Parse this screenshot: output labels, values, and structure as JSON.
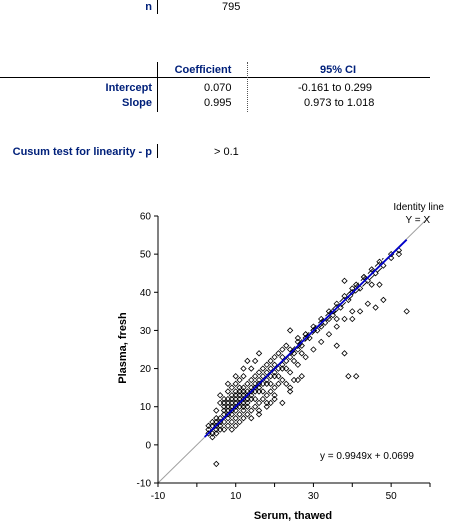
{
  "stats": {
    "n_label": "n",
    "n_value": "795",
    "col_coefficient": "Coefficient",
    "col_ci": "95% CI",
    "intercept_label": "Intercept",
    "intercept_value": "0.070",
    "intercept_ci": "-0.161  to 0.299",
    "slope_label": "Slope",
    "slope_value": "0.995",
    "slope_ci": "0.973  to 1.018",
    "cusum_label": "Cusum test for linearity - p",
    "cusum_value": "> 0.1"
  },
  "chart_data": {
    "type": "scatter",
    "xlabel": "Serum, thawed",
    "ylabel": "Plasma, fresh",
    "xlim": [
      -10,
      60
    ],
    "ylim": [
      -10,
      60
    ],
    "xticks": [
      -10,
      10,
      30,
      50
    ],
    "yticks": [
      -10,
      0,
      10,
      20,
      30,
      40,
      50,
      60
    ],
    "identity_label_1": "Identity line",
    "identity_label_2": "Y = X",
    "equation": "y = 0.9949x + 0.0699",
    "regression": {
      "slope": 0.9949,
      "intercept": 0.0699,
      "x_range": [
        2,
        54
      ]
    },
    "ci_slope_bounds": [
      0.973,
      1.018
    ],
    "colors": {
      "regression": "#0000cc",
      "identity": "#a0a0a0",
      "points": "#000000",
      "ci": "#000000"
    },
    "points": [
      [
        3,
        4
      ],
      [
        4,
        5
      ],
      [
        4,
        3
      ],
      [
        5,
        6
      ],
      [
        5,
        4
      ],
      [
        5,
        7
      ],
      [
        6,
        5
      ],
      [
        6,
        7
      ],
      [
        6,
        6
      ],
      [
        7,
        8
      ],
      [
        7,
        6
      ],
      [
        7,
        9
      ],
      [
        8,
        7
      ],
      [
        8,
        9
      ],
      [
        8,
        8
      ],
      [
        8,
        10
      ],
      [
        9,
        8
      ],
      [
        9,
        10
      ],
      [
        9,
        9
      ],
      [
        9,
        11
      ],
      [
        10,
        9
      ],
      [
        10,
        11
      ],
      [
        10,
        10
      ],
      [
        10,
        12
      ],
      [
        11,
        10
      ],
      [
        11,
        12
      ],
      [
        11,
        11
      ],
      [
        11,
        13
      ],
      [
        12,
        11
      ],
      [
        12,
        13
      ],
      [
        12,
        12
      ],
      [
        12,
        14
      ],
      [
        13,
        12
      ],
      [
        13,
        14
      ],
      [
        13,
        13
      ],
      [
        14,
        13
      ],
      [
        14,
        15
      ],
      [
        14,
        14
      ],
      [
        15,
        14
      ],
      [
        15,
        16
      ],
      [
        15,
        15
      ],
      [
        16,
        15
      ],
      [
        16,
        17
      ],
      [
        16,
        16
      ],
      [
        17,
        16
      ],
      [
        17,
        18
      ],
      [
        18,
        17
      ],
      [
        18,
        19
      ],
      [
        19,
        18
      ],
      [
        19,
        20
      ],
      [
        20,
        19
      ],
      [
        20,
        21
      ],
      [
        21,
        20
      ],
      [
        22,
        21
      ],
      [
        22,
        23
      ],
      [
        23,
        22
      ],
      [
        24,
        23
      ],
      [
        25,
        24
      ],
      [
        26,
        25
      ],
      [
        27,
        26
      ],
      [
        5,
        9
      ],
      [
        6,
        11
      ],
      [
        7,
        12
      ],
      [
        6,
        13
      ],
      [
        8,
        14
      ],
      [
        9,
        15
      ],
      [
        10,
        16
      ],
      [
        8,
        16
      ],
      [
        11,
        17
      ],
      [
        12,
        18
      ],
      [
        10,
        18
      ],
      [
        14,
        20
      ],
      [
        12,
        20
      ],
      [
        15,
        22
      ],
      [
        13,
        22
      ],
      [
        16,
        24
      ],
      [
        9,
        13
      ],
      [
        10,
        14
      ],
      [
        11,
        15
      ],
      [
        7,
        11
      ],
      [
        8,
        12
      ],
      [
        9,
        4
      ],
      [
        10,
        5
      ],
      [
        11,
        6
      ],
      [
        12,
        7
      ],
      [
        13,
        8
      ],
      [
        14,
        9
      ],
      [
        15,
        10
      ],
      [
        16,
        11
      ],
      [
        17,
        12
      ],
      [
        18,
        13
      ],
      [
        19,
        14
      ],
      [
        20,
        15
      ],
      [
        14,
        7
      ],
      [
        16,
        9
      ],
      [
        18,
        11
      ],
      [
        20,
        13
      ],
      [
        22,
        17
      ],
      [
        24,
        19
      ],
      [
        26,
        21
      ],
      [
        28,
        23
      ],
      [
        30,
        25
      ],
      [
        32,
        27
      ],
      [
        34,
        29
      ],
      [
        36,
        31
      ],
      [
        38,
        33
      ],
      [
        40,
        35
      ],
      [
        24,
        25
      ],
      [
        26,
        27
      ],
      [
        28,
        29
      ],
      [
        30,
        31
      ],
      [
        32,
        33
      ],
      [
        34,
        35
      ],
      [
        36,
        37
      ],
      [
        38,
        39
      ],
      [
        40,
        40
      ],
      [
        42,
        41
      ],
      [
        44,
        43
      ],
      [
        46,
        45
      ],
      [
        48,
        47
      ],
      [
        50,
        49
      ],
      [
        52,
        51
      ],
      [
        29,
        28
      ],
      [
        31,
        30
      ],
      [
        33,
        32
      ],
      [
        35,
        34
      ],
      [
        37,
        36
      ],
      [
        39,
        38
      ],
      [
        41,
        42
      ],
      [
        43,
        44
      ],
      [
        45,
        46
      ],
      [
        47,
        48
      ],
      [
        35,
        35
      ],
      [
        38,
        43
      ],
      [
        40,
        41
      ],
      [
        43,
        44
      ],
      [
        45,
        42
      ],
      [
        47,
        42
      ],
      [
        46,
        36
      ],
      [
        48,
        38
      ],
      [
        50,
        50
      ],
      [
        52,
        50
      ],
      [
        54,
        35
      ],
      [
        36,
        26
      ],
      [
        38,
        24
      ],
      [
        39,
        18
      ],
      [
        41,
        18
      ],
      [
        28,
        29
      ],
      [
        30,
        30
      ],
      [
        26,
        17
      ],
      [
        27,
        18
      ],
      [
        24,
        14
      ],
      [
        24,
        15
      ],
      [
        22,
        11
      ],
      [
        20,
        12
      ],
      [
        19,
        11
      ],
      [
        18,
        10
      ],
      [
        16,
        8
      ],
      [
        3,
        5
      ],
      [
        4,
        6
      ],
      [
        5,
        5
      ],
      [
        5,
        3
      ],
      [
        4,
        2
      ],
      [
        3,
        3
      ],
      [
        6,
        4
      ],
      [
        7,
        4
      ],
      [
        8,
        5
      ],
      [
        9,
        6
      ],
      [
        10,
        7
      ],
      [
        11,
        8
      ],
      [
        12,
        9
      ],
      [
        13,
        10
      ],
      [
        13,
        11
      ],
      [
        15,
        12
      ],
      [
        17,
        14
      ],
      [
        19,
        16
      ],
      [
        21,
        18
      ],
      [
        23,
        20
      ],
      [
        25,
        22
      ],
      [
        27,
        24
      ],
      [
        12,
        10
      ],
      [
        14,
        12
      ],
      [
        16,
        14
      ],
      [
        18,
        16
      ],
      [
        20,
        18
      ],
      [
        22,
        20
      ],
      [
        7,
        10
      ],
      [
        8,
        11
      ],
      [
        9,
        12
      ],
      [
        10,
        13
      ],
      [
        11,
        14
      ],
      [
        12,
        15
      ],
      [
        13,
        16
      ],
      [
        14,
        17
      ],
      [
        15,
        18
      ],
      [
        16,
        19
      ],
      [
        17,
        20
      ],
      [
        18,
        21
      ],
      [
        19,
        22
      ],
      [
        20,
        23
      ],
      [
        21,
        24
      ],
      [
        22,
        25
      ],
      [
        23,
        26
      ],
      [
        5,
        -5
      ],
      [
        40,
        33
      ],
      [
        36,
        33
      ],
      [
        24,
        30
      ],
      [
        26,
        28
      ],
      [
        28,
        28
      ],
      [
        32,
        31
      ],
      [
        34,
        33
      ],
      [
        42,
        35
      ],
      [
        44,
        37
      ],
      [
        25,
        17
      ],
      [
        23,
        16
      ],
      [
        21,
        16
      ]
    ]
  }
}
